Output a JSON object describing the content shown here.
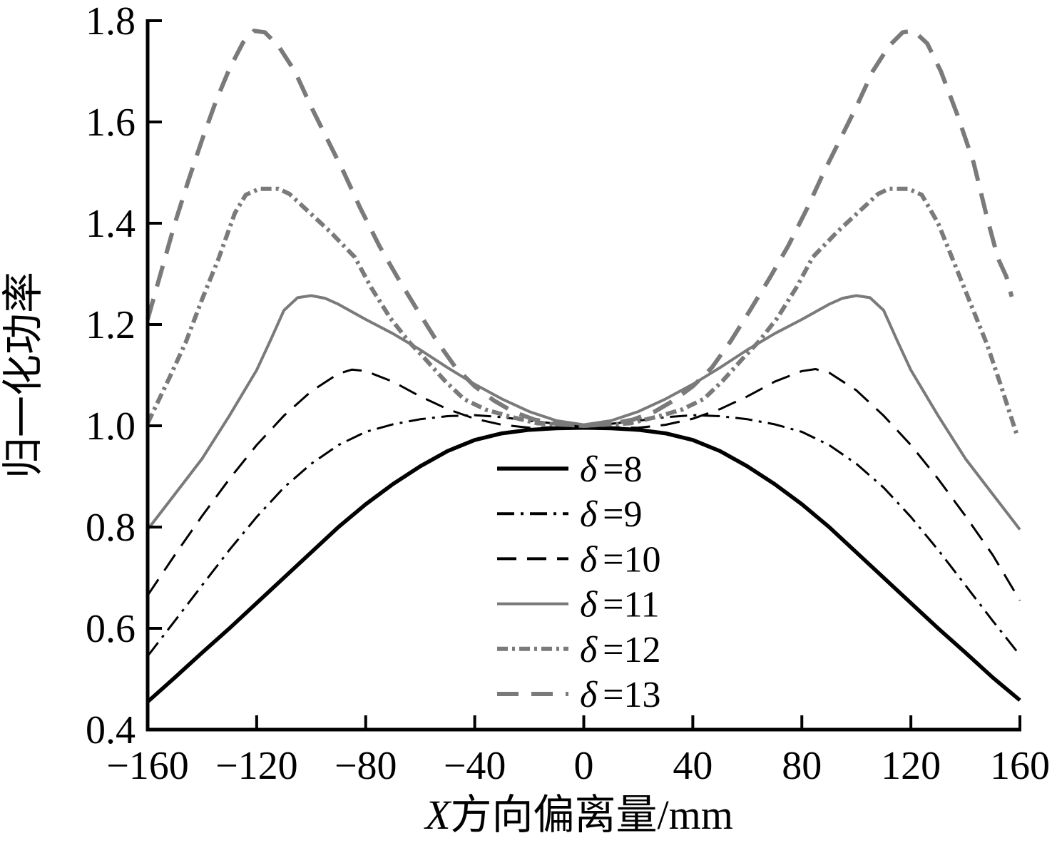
{
  "chart_data": {
    "type": "line",
    "title": "",
    "xlabel_italic": "X",
    "xlabel_rest": "方向偏离量/mm",
    "ylabel": "归一化功率",
    "xlim": [
      -160,
      160
    ],
    "ylim": [
      0.4,
      1.8
    ],
    "xticks": [
      -160,
      -120,
      -80,
      -40,
      0,
      40,
      80,
      120,
      160
    ],
    "xtick_labels": [
      "−160",
      "−120",
      "−80",
      "−40",
      "0",
      "40",
      "80",
      "120",
      "160"
    ],
    "yticks": [
      0.4,
      0.6,
      0.8,
      1.0,
      1.2,
      1.4,
      1.6,
      1.8
    ],
    "ytick_labels": [
      "0.4",
      "0.6",
      "0.8",
      "1.0",
      "1.2",
      "1.4",
      "1.6",
      "1.8"
    ],
    "grid": false,
    "legend_position": "inside lower-center, no box",
    "colors": {
      "black": "#000000",
      "gray": "#7a7a7a"
    },
    "series": [
      {
        "name": "δ =8",
        "symbol": "δ",
        "eq": "=8",
        "color": "#000000",
        "width": 5.5,
        "dash": "solid",
        "points": [
          [
            -160,
            0.455
          ],
          [
            -150,
            0.503
          ],
          [
            -140,
            0.552
          ],
          [
            -130,
            0.6
          ],
          [
            -120,
            0.65
          ],
          [
            -110,
            0.7
          ],
          [
            -100,
            0.75
          ],
          [
            -90,
            0.8
          ],
          [
            -80,
            0.845
          ],
          [
            -70,
            0.885
          ],
          [
            -60,
            0.92
          ],
          [
            -50,
            0.95
          ],
          [
            -40,
            0.972
          ],
          [
            -30,
            0.985
          ],
          [
            -20,
            0.992
          ],
          [
            -10,
            0.995
          ],
          [
            0,
            0.996
          ],
          [
            10,
            0.995
          ],
          [
            20,
            0.992
          ],
          [
            30,
            0.985
          ],
          [
            40,
            0.972
          ],
          [
            50,
            0.95
          ],
          [
            60,
            0.92
          ],
          [
            70,
            0.885
          ],
          [
            80,
            0.845
          ],
          [
            90,
            0.8
          ],
          [
            100,
            0.75
          ],
          [
            110,
            0.7
          ],
          [
            120,
            0.65
          ],
          [
            130,
            0.6
          ],
          [
            140,
            0.552
          ],
          [
            150,
            0.503
          ],
          [
            160,
            0.458
          ]
        ]
      },
      {
        "name": "δ =9",
        "symbol": "δ",
        "eq": "=9",
        "color": "#000000",
        "width": 3,
        "dash": "dashdot",
        "points": [
          [
            -160,
            0.545
          ],
          [
            -150,
            0.615
          ],
          [
            -140,
            0.685
          ],
          [
            -130,
            0.755
          ],
          [
            -120,
            0.82
          ],
          [
            -110,
            0.878
          ],
          [
            -100,
            0.925
          ],
          [
            -90,
            0.962
          ],
          [
            -80,
            0.988
          ],
          [
            -70,
            1.003
          ],
          [
            -60,
            1.013
          ],
          [
            -50,
            1.019
          ],
          [
            -40,
            1.021
          ],
          [
            -30,
            1.017
          ],
          [
            -20,
            1.01
          ],
          [
            -10,
            1.004
          ],
          [
            0,
            1.002
          ],
          [
            10,
            1.004
          ],
          [
            20,
            1.01
          ],
          [
            30,
            1.017
          ],
          [
            40,
            1.021
          ],
          [
            50,
            1.019
          ],
          [
            60,
            1.013
          ],
          [
            70,
            1.003
          ],
          [
            80,
            0.988
          ],
          [
            90,
            0.962
          ],
          [
            100,
            0.925
          ],
          [
            110,
            0.878
          ],
          [
            120,
            0.82
          ],
          [
            130,
            0.755
          ],
          [
            140,
            0.685
          ],
          [
            150,
            0.615
          ],
          [
            160,
            0.547
          ]
        ]
      },
      {
        "name": "δ =10",
        "symbol": "δ",
        "eq": "=10",
        "color": "#000000",
        "width": 3,
        "dash": "dashed",
        "points": [
          [
            -160,
            0.665
          ],
          [
            -150,
            0.745
          ],
          [
            -140,
            0.822
          ],
          [
            -130,
            0.895
          ],
          [
            -120,
            0.962
          ],
          [
            -110,
            1.02
          ],
          [
            -100,
            1.068
          ],
          [
            -90,
            1.103
          ],
          [
            -85,
            1.111
          ],
          [
            -80,
            1.108
          ],
          [
            -70,
            1.087
          ],
          [
            -60,
            1.058
          ],
          [
            -50,
            1.033
          ],
          [
            -40,
            1.014
          ],
          [
            -30,
            1.002
          ],
          [
            -20,
            0.996
          ],
          [
            -10,
            0.997
          ],
          [
            0,
            1.0
          ],
          [
            10,
            0.997
          ],
          [
            20,
            0.996
          ],
          [
            30,
            1.002
          ],
          [
            40,
            1.014
          ],
          [
            50,
            1.033
          ],
          [
            60,
            1.058
          ],
          [
            70,
            1.087
          ],
          [
            80,
            1.108
          ],
          [
            85,
            1.112
          ],
          [
            90,
            1.105
          ],
          [
            100,
            1.07
          ],
          [
            110,
            1.02
          ],
          [
            120,
            0.962
          ],
          [
            130,
            0.895
          ],
          [
            140,
            0.822
          ],
          [
            150,
            0.745
          ],
          [
            160,
            0.655
          ]
        ]
      },
      {
        "name": "δ =11",
        "symbol": "δ",
        "eq": "=11",
        "color": "#7a7a7a",
        "width": 4,
        "dash": "solid",
        "points": [
          [
            -160,
            0.795
          ],
          [
            -150,
            0.865
          ],
          [
            -140,
            0.935
          ],
          [
            -130,
            1.02
          ],
          [
            -120,
            1.11
          ],
          [
            -115,
            1.168
          ],
          [
            -110,
            1.228
          ],
          [
            -105,
            1.253
          ],
          [
            -100,
            1.257
          ],
          [
            -95,
            1.252
          ],
          [
            -90,
            1.24
          ],
          [
            -80,
            1.21
          ],
          [
            -70,
            1.182
          ],
          [
            -60,
            1.15
          ],
          [
            -50,
            1.115
          ],
          [
            -40,
            1.082
          ],
          [
            -30,
            1.053
          ],
          [
            -20,
            1.028
          ],
          [
            -10,
            1.01
          ],
          [
            0,
            1.002
          ],
          [
            10,
            1.01
          ],
          [
            20,
            1.028
          ],
          [
            30,
            1.053
          ],
          [
            40,
            1.082
          ],
          [
            50,
            1.115
          ],
          [
            60,
            1.15
          ],
          [
            70,
            1.182
          ],
          [
            80,
            1.21
          ],
          [
            90,
            1.24
          ],
          [
            95,
            1.252
          ],
          [
            100,
            1.257
          ],
          [
            105,
            1.253
          ],
          [
            110,
            1.228
          ],
          [
            115,
            1.168
          ],
          [
            120,
            1.11
          ],
          [
            130,
            1.02
          ],
          [
            140,
            0.935
          ],
          [
            150,
            0.865
          ],
          [
            160,
            0.795
          ]
        ]
      },
      {
        "name": "δ =12",
        "symbol": "δ",
        "eq": "=12",
        "color": "#7a7a7a",
        "width": 6,
        "dash": "dashdotdot",
        "points": [
          [
            -160,
            1.005
          ],
          [
            -152,
            1.095
          ],
          [
            -146,
            1.165
          ],
          [
            -140,
            1.25
          ],
          [
            -134,
            1.33
          ],
          [
            -128,
            1.42
          ],
          [
            -124,
            1.456
          ],
          [
            -119,
            1.468
          ],
          [
            -112,
            1.468
          ],
          [
            -108,
            1.458
          ],
          [
            -100,
            1.418
          ],
          [
            -93,
            1.383
          ],
          [
            -84,
            1.333
          ],
          [
            -78,
            1.273
          ],
          [
            -71,
            1.213
          ],
          [
            -64,
            1.165
          ],
          [
            -58,
            1.131
          ],
          [
            -51,
            1.089
          ],
          [
            -44,
            1.053
          ],
          [
            -36,
            1.032
          ],
          [
            -27,
            1.018
          ],
          [
            -17,
            1.005
          ],
          [
            0,
            1.0
          ],
          [
            17,
            1.005
          ],
          [
            27,
            1.018
          ],
          [
            36,
            1.032
          ],
          [
            44,
            1.053
          ],
          [
            51,
            1.089
          ],
          [
            58,
            1.131
          ],
          [
            64,
            1.165
          ],
          [
            71,
            1.213
          ],
          [
            78,
            1.273
          ],
          [
            84,
            1.333
          ],
          [
            93,
            1.383
          ],
          [
            100,
            1.418
          ],
          [
            108,
            1.458
          ],
          [
            112,
            1.468
          ],
          [
            119,
            1.468
          ],
          [
            124,
            1.456
          ],
          [
            130,
            1.4
          ],
          [
            136,
            1.32
          ],
          [
            142,
            1.24
          ],
          [
            148,
            1.16
          ],
          [
            153,
            1.08
          ],
          [
            159,
            0.98
          ]
        ]
      },
      {
        "name": "δ =13",
        "symbol": "δ",
        "eq": "=13",
        "color": "#7a7a7a",
        "width": 6,
        "dash": "longdash",
        "points": [
          [
            -160,
            1.21
          ],
          [
            -155,
            1.305
          ],
          [
            -150,
            1.4
          ],
          [
            -145,
            1.485
          ],
          [
            -140,
            1.565
          ],
          [
            -135,
            1.64
          ],
          [
            -130,
            1.705
          ],
          [
            -125,
            1.757
          ],
          [
            -121,
            1.78
          ],
          [
            -117,
            1.777
          ],
          [
            -112,
            1.75
          ],
          [
            -106,
            1.7
          ],
          [
            -100,
            1.63
          ],
          [
            -94,
            1.565
          ],
          [
            -88,
            1.5
          ],
          [
            -82,
            1.43
          ],
          [
            -75,
            1.355
          ],
          [
            -68,
            1.29
          ],
          [
            -61,
            1.228
          ],
          [
            -54,
            1.168
          ],
          [
            -47,
            1.115
          ],
          [
            -40,
            1.078
          ],
          [
            -33,
            1.05
          ],
          [
            -26,
            1.028
          ],
          [
            -18,
            1.012
          ],
          [
            -9,
            1.003
          ],
          [
            0,
            1.0
          ],
          [
            9,
            1.003
          ],
          [
            18,
            1.012
          ],
          [
            26,
            1.028
          ],
          [
            33,
            1.05
          ],
          [
            40,
            1.078
          ],
          [
            47,
            1.115
          ],
          [
            54,
            1.168
          ],
          [
            61,
            1.228
          ],
          [
            68,
            1.29
          ],
          [
            75,
            1.355
          ],
          [
            82,
            1.43
          ],
          [
            88,
            1.5
          ],
          [
            94,
            1.565
          ],
          [
            100,
            1.63
          ],
          [
            106,
            1.7
          ],
          [
            112,
            1.75
          ],
          [
            117,
            1.777
          ],
          [
            121,
            1.78
          ],
          [
            126,
            1.755
          ],
          [
            131,
            1.7
          ],
          [
            137,
            1.615
          ],
          [
            143,
            1.52
          ],
          [
            148,
            1.41
          ],
          [
            152,
            1.33
          ],
          [
            155,
            1.295
          ],
          [
            157,
            1.255
          ]
        ]
      }
    ]
  }
}
